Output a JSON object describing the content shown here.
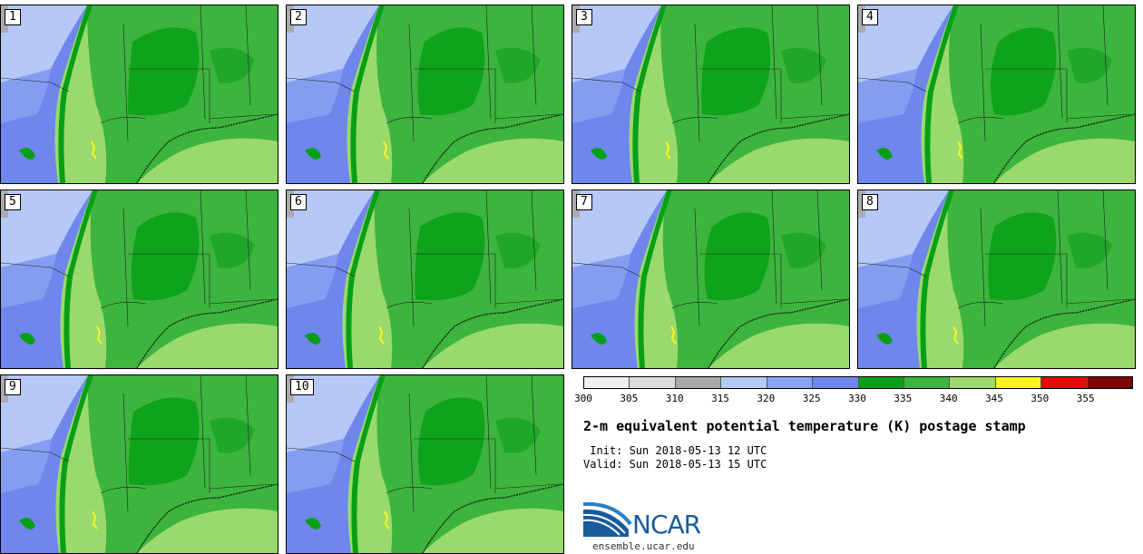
{
  "members": [
    "1",
    "2",
    "3",
    "4",
    "5",
    "6",
    "7",
    "8",
    "9",
    "10"
  ],
  "colorbar": {
    "ticks": [
      "300",
      "305",
      "310",
      "315",
      "320",
      "325",
      "330",
      "335",
      "340",
      "345",
      "350",
      "355"
    ],
    "colors": [
      "#f0f0f0",
      "#dcdcdc",
      "#a9a9a9",
      "#b5c8f7",
      "#8aa3f2",
      "#6f86ec",
      "#079f16",
      "#3db43d",
      "#9ad96d",
      "#fcf51c",
      "#e70a08",
      "#7c0505"
    ]
  },
  "title": "2-m equivalent potential temperature (K) postage stamp",
  "init_label": " Init: Sun 2018-05-13 12 UTC",
  "valid_label": "Valid: Sun 2018-05-13 15 UTC",
  "logo": {
    "text": "NCAR",
    "site": "ensemble.ucar.edu"
  },
  "palette": {
    "blue_light": "#b5c8f7",
    "blue_mid": "#8aa3f2",
    "blue_dark": "#6f86ec",
    "green_dark": "#079f16",
    "green_mid": "#3db43d",
    "green_light": "#9ad96d",
    "yellow": "#fcf51c"
  }
}
